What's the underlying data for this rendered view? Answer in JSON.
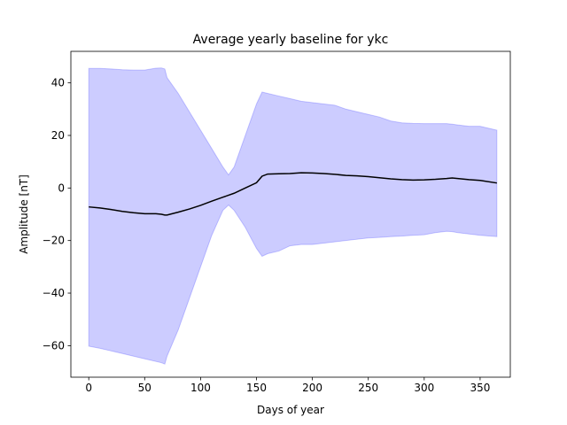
{
  "chart_data": {
    "type": "area",
    "title": "Average yearly baseline for ykc",
    "xlabel": "Days of year",
    "ylabel": "Amplitude [nT]",
    "xlim": [
      -16,
      377
    ],
    "ylim": [
      -72,
      52
    ],
    "xticks": [
      0,
      50,
      100,
      150,
      200,
      250,
      300,
      350
    ],
    "yticks": [
      -60,
      -40,
      -20,
      0,
      20,
      40
    ],
    "ytick_labels": [
      "−60",
      "−40",
      "−20",
      "0",
      "20",
      "40"
    ],
    "series": [
      {
        "kind": "line",
        "color": "#000000",
        "x": [
          0,
          10,
          20,
          30,
          40,
          50,
          60,
          65,
          68,
          70,
          80,
          90,
          100,
          110,
          120,
          130,
          140,
          150,
          155,
          160,
          170,
          180,
          190,
          200,
          210,
          220,
          230,
          240,
          250,
          260,
          270,
          280,
          290,
          300,
          310,
          320,
          325,
          330,
          340,
          350,
          365
        ],
        "values": [
          -7.2,
          -7.6,
          -8.2,
          -8.9,
          -9.4,
          -9.8,
          -9.8,
          -10.0,
          -10.3,
          -10.3,
          -9.2,
          -8.0,
          -6.6,
          -5.0,
          -3.5,
          -2.0,
          0.0,
          2.0,
          4.5,
          5.3,
          5.4,
          5.5,
          5.8,
          5.7,
          5.5,
          5.2,
          4.8,
          4.6,
          4.3,
          3.9,
          3.5,
          3.2,
          3.0,
          3.1,
          3.3,
          3.6,
          3.8,
          3.6,
          3.2,
          2.9,
          1.9
        ]
      },
      {
        "kind": "band",
        "color": "#0000ff",
        "x": [
          0,
          10,
          20,
          30,
          40,
          50,
          60,
          65,
          68,
          70,
          80,
          90,
          100,
          110,
          120,
          125,
          130,
          140,
          150,
          155,
          160,
          170,
          180,
          190,
          200,
          210,
          220,
          230,
          240,
          250,
          260,
          270,
          280,
          290,
          300,
          310,
          320,
          325,
          330,
          340,
          350,
          365
        ],
        "upper": [
          45.5,
          45.5,
          45.3,
          45.0,
          44.9,
          44.9,
          45.6,
          45.7,
          45.3,
          42.0,
          36.0,
          29.0,
          22.0,
          15.0,
          8.0,
          5.0,
          8.0,
          20.0,
          32.0,
          36.5,
          36.0,
          35.0,
          34.0,
          33.0,
          32.5,
          32.0,
          31.5,
          30.0,
          29.0,
          28.0,
          27.0,
          25.5,
          24.8,
          24.6,
          24.5,
          24.5,
          24.5,
          24.3,
          24.0,
          23.5,
          23.5,
          22.0
        ],
        "lower": [
          -60.2,
          -61.0,
          -62.0,
          -63.0,
          -64.0,
          -65.0,
          -66.0,
          -66.5,
          -67.0,
          -64.0,
          -54.0,
          -42.0,
          -30.0,
          -18.0,
          -8.5,
          -6.5,
          -8.5,
          -15.0,
          -23.0,
          -26.0,
          -25.0,
          -24.0,
          -22.0,
          -21.5,
          -21.5,
          -21.0,
          -20.5,
          -20.0,
          -19.5,
          -19.0,
          -18.8,
          -18.5,
          -18.3,
          -18.0,
          -17.8,
          -17.0,
          -16.5,
          -16.6,
          -17.0,
          -17.5,
          -18.0,
          -18.5
        ]
      }
    ]
  }
}
